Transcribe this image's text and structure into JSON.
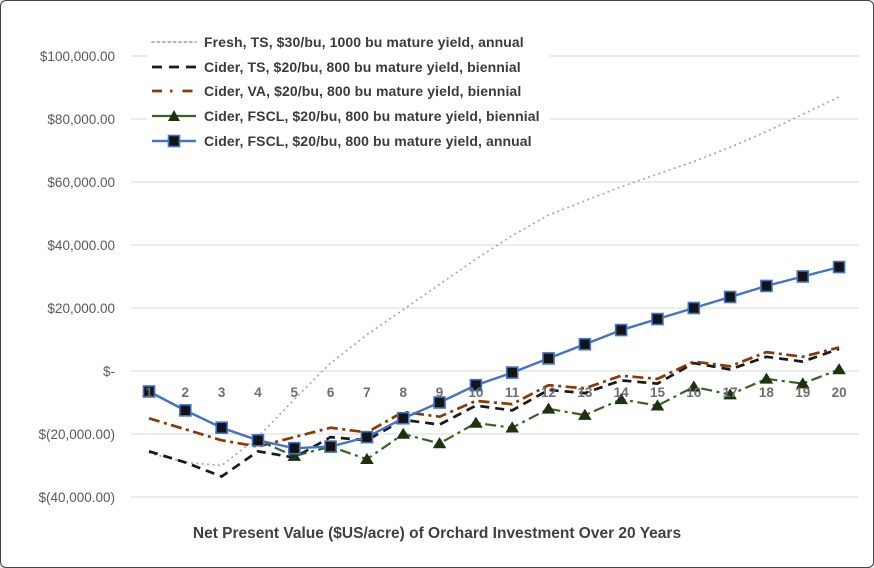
{
  "chart_data": {
    "type": "line",
    "title": "Net Present Value ($US/acre) of Orchard Investment Over 20 Years",
    "xlabel": "",
    "ylabel": "",
    "x": [
      1,
      2,
      3,
      4,
      5,
      6,
      7,
      8,
      9,
      10,
      11,
      12,
      13,
      14,
      15,
      16,
      17,
      18,
      19,
      20
    ],
    "x_tick_labels": [
      "1",
      "2",
      "3",
      "4",
      "5",
      "6",
      "7",
      "8",
      "9",
      "10",
      "11",
      "12",
      "13",
      "14",
      "15",
      "16",
      "17",
      "18",
      "19",
      "20"
    ],
    "y_axis": {
      "tick_values": [
        100000,
        80000,
        60000,
        40000,
        20000,
        0,
        -20000,
        -40000
      ],
      "tick_labels": [
        "$100,000.00",
        "$80,000.00",
        "$60,000.00",
        "$40,000.00",
        "$20,000.00",
        "$-",
        "$(20,000.00)",
        "$(40,000.00)"
      ],
      "range": [
        -40000,
        100000
      ],
      "gridlines": "on"
    },
    "legend_position": "top-left",
    "series": [
      {
        "name": "Fresh, TS, $30/bu, 1000 bu mature yield, annual",
        "style": "dotted",
        "color": "#A9A9A9",
        "marker": "none",
        "values": [
          -26000,
          -29000,
          -30000,
          -21000,
          -9000,
          2500,
          11500,
          19500,
          27500,
          35500,
          43000,
          49500,
          54000,
          58500,
          62500,
          66500,
          71000,
          76000,
          81500,
          87000
        ]
      },
      {
        "name": "Cider, TS, $20/bu, 800 bu mature yield, biennial",
        "style": "dashed",
        "color": "#1A1A1A",
        "marker": "none",
        "values": [
          -25500,
          -29000,
          -33500,
          -25500,
          -27500,
          -21000,
          -22000,
          -15500,
          -17000,
          -11000,
          -12500,
          -6000,
          -7000,
          -3000,
          -4000,
          2500,
          500,
          4500,
          3000,
          7000
        ]
      },
      {
        "name": "Cider, VA, $20/bu, 800 bu mature yield, biennial",
        "style": "dash-dot",
        "color": "#843C0C",
        "marker": "none",
        "values": [
          -15000,
          -18500,
          -22000,
          -24000,
          -21000,
          -18000,
          -19500,
          -13000,
          -14500,
          -9500,
          -10500,
          -4500,
          -5500,
          -1500,
          -2500,
          3000,
          1500,
          6000,
          4500,
          7500
        ]
      },
      {
        "name": "Cider, FSCL, $20/bu, 800 bu mature yield, biennial",
        "style": "dash-dot",
        "color": "#3E5F27",
        "marker": "triangle",
        "marker_color": "#1E3211",
        "values": [
          -6500,
          -12500,
          -18000,
          -22000,
          -27000,
          -24000,
          -28000,
          -20000,
          -23000,
          -16500,
          -18000,
          -12000,
          -14000,
          -9000,
          -11000,
          -5000,
          -7500,
          -2500,
          -4000,
          500
        ]
      },
      {
        "name": "Cider, FSCL, $20/bu, 800 bu mature yield, annual",
        "style": "solid",
        "color": "#4472C4",
        "marker": "square",
        "marker_color": "#141414",
        "values": [
          -6500,
          -12500,
          -18000,
          -22000,
          -24500,
          -24000,
          -21000,
          -15000,
          -10000,
          -4500,
          -500,
          4000,
          8500,
          13000,
          16500,
          20000,
          23500,
          27000,
          30000,
          33000
        ]
      }
    ]
  }
}
